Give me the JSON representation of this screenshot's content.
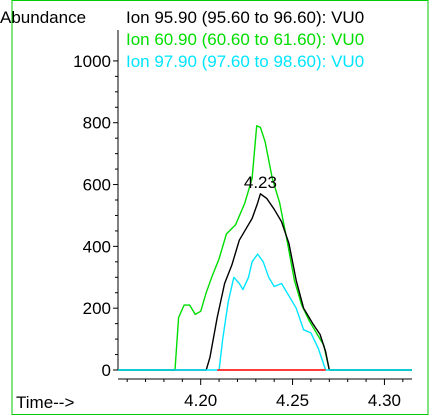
{
  "chart_data": {
    "type": "line",
    "ylabel": "Abundance",
    "xlabel": "Time-->",
    "xlim": [
      4.155,
      4.315
    ],
    "ylim": [
      0,
      1100
    ],
    "x_ticks": [
      4.2,
      4.25,
      4.3
    ],
    "x_tick_labels": [
      "4.20",
      "4.25",
      "4.30"
    ],
    "y_ticks": [
      0,
      200,
      400,
      600,
      800,
      1000
    ],
    "y_tick_labels": [
      "0",
      "200",
      "400",
      "600",
      "800",
      "1000"
    ],
    "legend_position": "top-right",
    "peak_annotation": {
      "label": "4.23",
      "x": 4.2325,
      "y": 570
    },
    "integration_baseline": {
      "x_start": 4.209,
      "x_end": 4.268,
      "y": 0,
      "color": "#ff3b3b"
    },
    "series": [
      {
        "name": "Ion  95.90 (95.60 to 96.60): VU0",
        "color": "#000000",
        "x": [
          4.155,
          4.203,
          4.205,
          4.209,
          4.213,
          4.217,
          4.221,
          4.225,
          4.228,
          4.231,
          4.2325,
          4.236,
          4.24,
          4.244,
          4.248,
          4.252,
          4.256,
          4.261,
          4.265,
          4.268,
          4.27,
          4.315
        ],
        "y": [
          0,
          0,
          40,
          170,
          280,
          340,
          420,
          460,
          490,
          540,
          570,
          555,
          520,
          480,
          410,
          290,
          200,
          150,
          115,
          60,
          0,
          0
        ]
      },
      {
        "name": "Ion  60.90 (60.60 to 61.60): VU0",
        "color": "#00dd00",
        "x": [
          4.155,
          4.186,
          4.188,
          4.191,
          4.194,
          4.197,
          4.2,
          4.203,
          4.206,
          4.21,
          4.214,
          4.219,
          4.224,
          4.228,
          4.2305,
          4.2325,
          4.235,
          4.239,
          4.243,
          4.247,
          4.251,
          4.255,
          4.259,
          4.263,
          4.267,
          4.27,
          4.315
        ],
        "y": [
          0,
          0,
          170,
          210,
          210,
          180,
          190,
          250,
          300,
          360,
          440,
          470,
          540,
          620,
          790,
          785,
          740,
          620,
          540,
          420,
          290,
          210,
          160,
          120,
          80,
          0,
          0
        ]
      },
      {
        "name": "Ion  97.90 (97.60 to 98.60): VU0",
        "color": "#00e5ff",
        "x": [
          4.155,
          4.21,
          4.212,
          4.215,
          4.218,
          4.221,
          4.223,
          4.226,
          4.228,
          4.231,
          4.234,
          4.237,
          4.24,
          4.244,
          4.248,
          4.252,
          4.256,
          4.26,
          4.264,
          4.268,
          4.315
        ],
        "y": [
          0,
          0,
          100,
          220,
          300,
          280,
          260,
          300,
          350,
          375,
          350,
          300,
          270,
          280,
          240,
          200,
          130,
          120,
          70,
          0,
          0
        ]
      }
    ]
  }
}
